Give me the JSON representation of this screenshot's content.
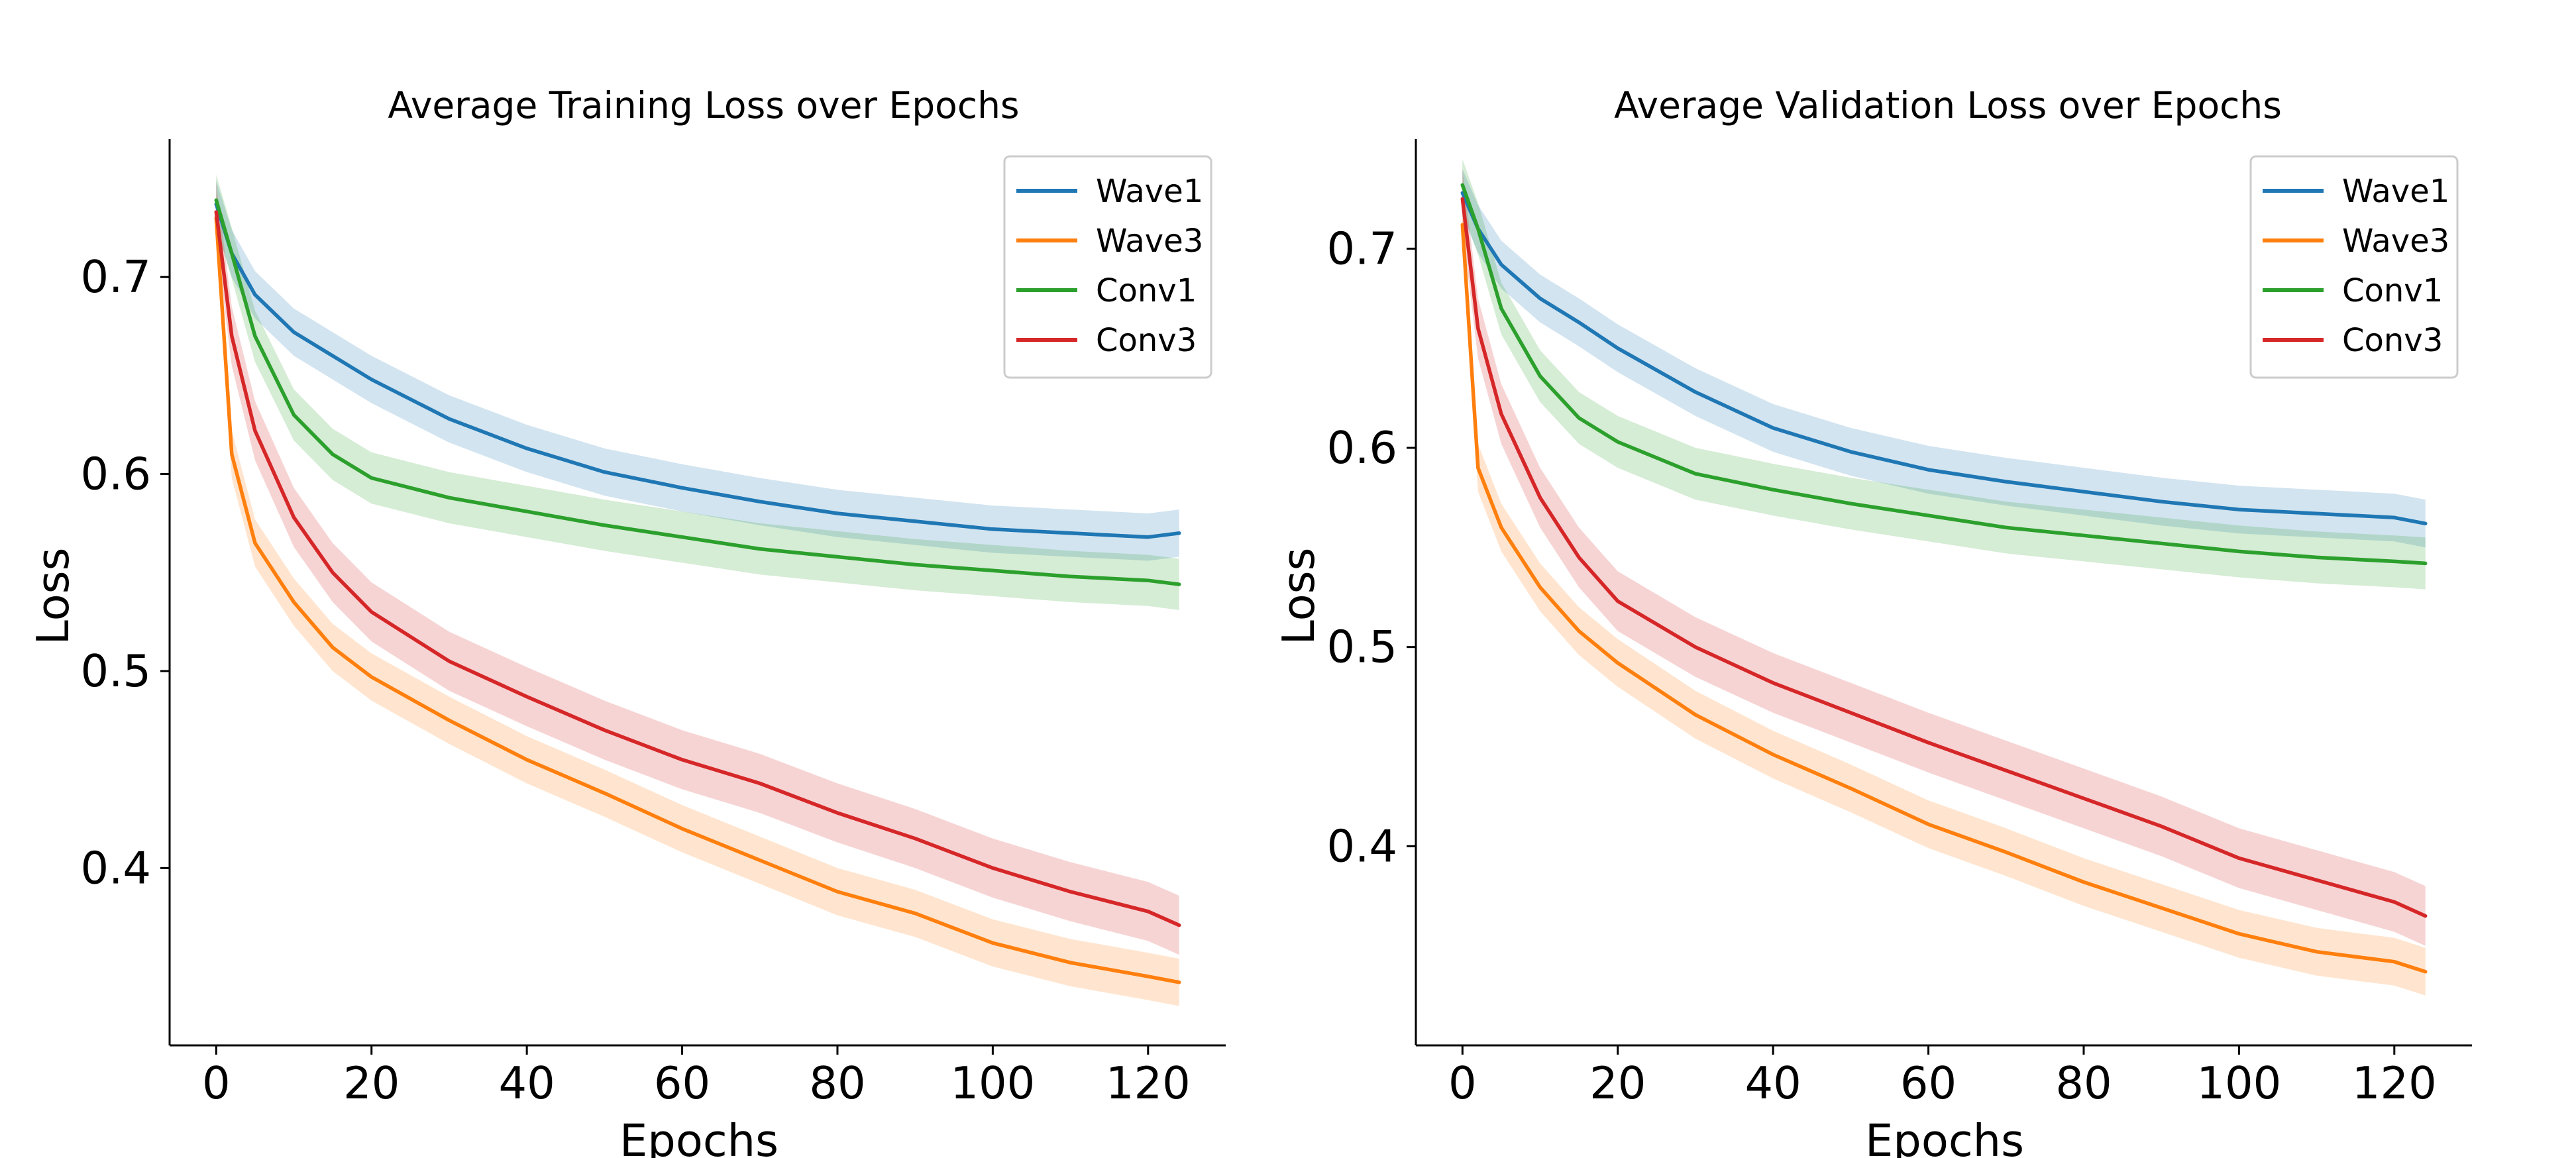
{
  "colors": {
    "Wave1": "#1f77b4",
    "Wave3": "#ff7f0e",
    "Conv1": "#2ca02c",
    "Conv3": "#d62728"
  },
  "chart_data": [
    {
      "type": "line",
      "title": "Average Training Loss over Epochs",
      "xlabel": "Epochs",
      "ylabel": "Loss",
      "xlim": [
        -6,
        130
      ],
      "ylim": [
        0.31,
        0.77
      ],
      "xticks": [
        0,
        20,
        40,
        60,
        80,
        100,
        120
      ],
      "yticks": [
        0.4,
        0.5,
        0.6,
        0.7
      ],
      "grid": false,
      "legend": "top-right",
      "x": [
        0,
        2,
        5,
        10,
        15,
        20,
        30,
        40,
        50,
        60,
        70,
        80,
        90,
        100,
        110,
        120,
        124
      ],
      "series": [
        {
          "name": "Wave1",
          "values": [
            0.737,
            0.712,
            0.691,
            0.672,
            0.66,
            0.648,
            0.628,
            0.613,
            0.601,
            0.593,
            0.586,
            0.58,
            0.576,
            0.572,
            0.57,
            0.568,
            0.57
          ],
          "band": 0.012
        },
        {
          "name": "Wave3",
          "values": [
            0.73,
            0.61,
            0.565,
            0.535,
            0.512,
            0.497,
            0.475,
            0.455,
            0.438,
            0.42,
            0.404,
            0.388,
            0.377,
            0.362,
            0.352,
            0.345,
            0.342
          ],
          "band": 0.012
        },
        {
          "name": "Conv1",
          "values": [
            0.739,
            0.712,
            0.67,
            0.63,
            0.61,
            0.598,
            0.588,
            0.581,
            0.574,
            0.568,
            0.562,
            0.558,
            0.554,
            0.551,
            0.548,
            0.546,
            0.544
          ],
          "band": 0.013
        },
        {
          "name": "Conv3",
          "values": [
            0.733,
            0.67,
            0.622,
            0.578,
            0.55,
            0.53,
            0.505,
            0.487,
            0.47,
            0.455,
            0.443,
            0.428,
            0.415,
            0.4,
            0.388,
            0.378,
            0.371
          ],
          "band": 0.015
        }
      ]
    },
    {
      "type": "line",
      "title": "Average Validation Loss over Epochs",
      "xlabel": "Epochs",
      "ylabel": "Loss",
      "xlim": [
        -6,
        130
      ],
      "ylim": [
        0.3,
        0.755
      ],
      "xticks": [
        0,
        20,
        40,
        60,
        80,
        100,
        120
      ],
      "yticks": [
        0.4,
        0.5,
        0.6,
        0.7
      ],
      "grid": false,
      "legend": "top-right",
      "x": [
        0,
        2,
        5,
        10,
        15,
        20,
        30,
        40,
        50,
        60,
        70,
        80,
        90,
        100,
        110,
        120,
        124
      ],
      "series": [
        {
          "name": "Wave1",
          "values": [
            0.728,
            0.71,
            0.692,
            0.675,
            0.663,
            0.65,
            0.628,
            0.61,
            0.598,
            0.589,
            0.583,
            0.578,
            0.573,
            0.569,
            0.567,
            0.565,
            0.562
          ],
          "band": 0.012
        },
        {
          "name": "Wave3",
          "values": [
            0.712,
            0.59,
            0.56,
            0.53,
            0.508,
            0.492,
            0.466,
            0.446,
            0.429,
            0.411,
            0.397,
            0.382,
            0.369,
            0.356,
            0.347,
            0.342,
            0.337
          ],
          "band": 0.012
        },
        {
          "name": "Conv1",
          "values": [
            0.732,
            0.71,
            0.67,
            0.636,
            0.615,
            0.603,
            0.587,
            0.579,
            0.572,
            0.566,
            0.56,
            0.556,
            0.552,
            0.548,
            0.545,
            0.543,
            0.542
          ],
          "band": 0.013
        },
        {
          "name": "Conv3",
          "values": [
            0.725,
            0.66,
            0.617,
            0.575,
            0.545,
            0.523,
            0.5,
            0.482,
            0.467,
            0.452,
            0.438,
            0.424,
            0.41,
            0.394,
            0.383,
            0.372,
            0.365
          ],
          "band": 0.015
        }
      ]
    }
  ]
}
